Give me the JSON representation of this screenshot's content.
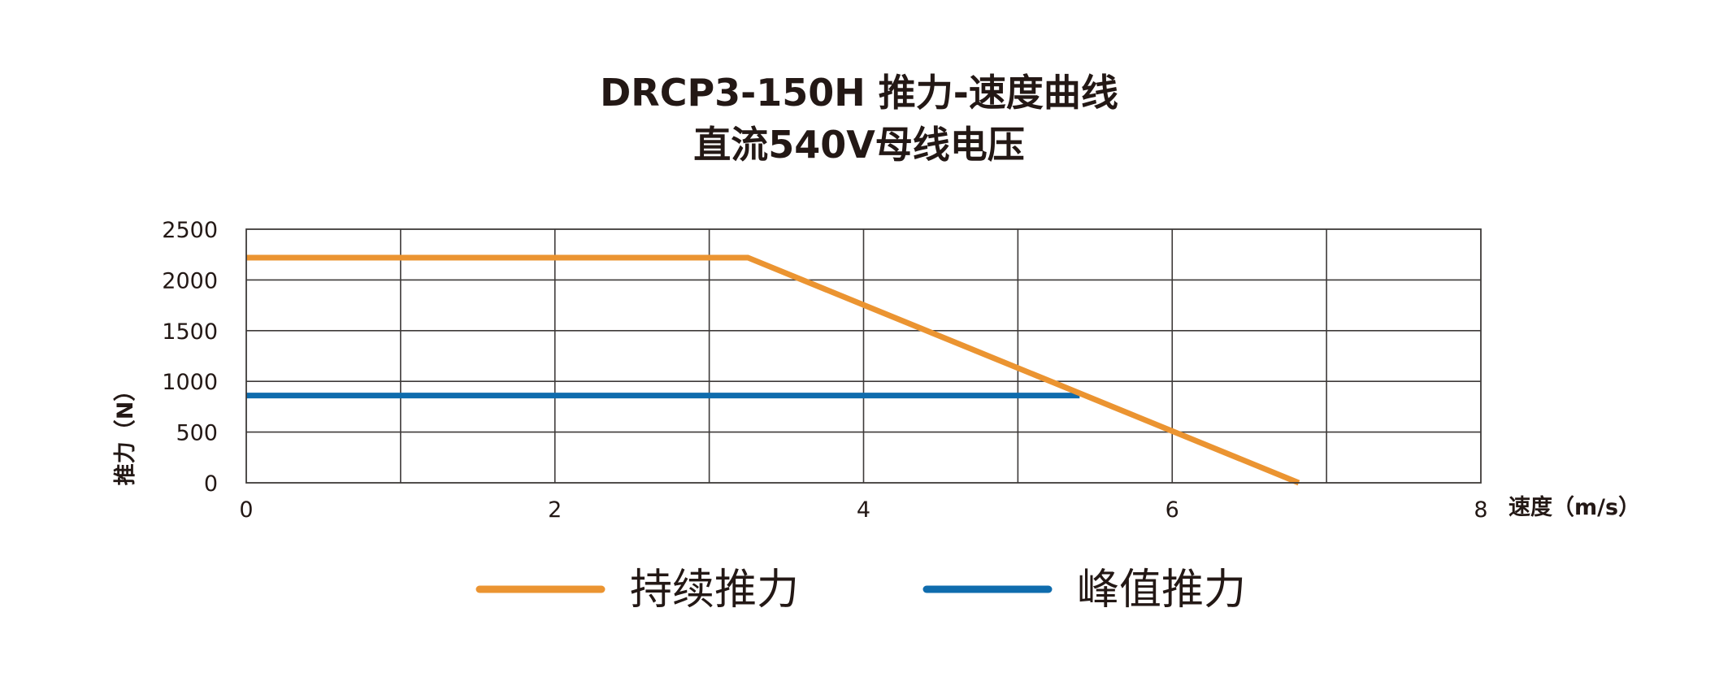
{
  "chart_data": {
    "type": "line",
    "title": "DRCP3-150H 推力-速度曲线",
    "subtitle": "直流540V母线电压",
    "xlabel": "速度（m/s）",
    "ylabel": "推力（N）",
    "xlim": [
      0,
      8
    ],
    "ylim": [
      0,
      2500
    ],
    "x_ticks": [
      0,
      2,
      4,
      6,
      8
    ],
    "x_tick_labels": [
      "0",
      "2",
      "4",
      "6",
      "8"
    ],
    "x_grid_step": 1,
    "y_ticks": [
      0,
      500,
      1000,
      1500,
      2000,
      2500
    ],
    "y_tick_labels": [
      "0",
      "500",
      "1000",
      "1500",
      "2000",
      "2500"
    ],
    "grid": true,
    "legend_position": "bottom",
    "series": [
      {
        "name": "持续推力",
        "color": "#eb9431",
        "x": [
          0,
          3.25,
          6.82
        ],
        "y": [
          2220,
          2220,
          0
        ]
      },
      {
        "name": "峰值推力",
        "color": "#0f6cad",
        "x": [
          0,
          5.4
        ],
        "y": [
          860,
          860
        ]
      }
    ]
  }
}
